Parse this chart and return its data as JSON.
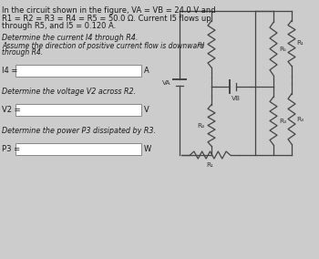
{
  "bg_color": "#cccccc",
  "text_color": "#1a1a1a",
  "title_lines": [
    "In the circuit shown in the figure, VA = VB = 24.0 V and",
    "R1 = R2 = R3 = R4 = R5 = 50.0 Ω. Current I5 flows up",
    "through R5, and I5 = 0.120 A."
  ],
  "q1_head": "Determine the current I4 through R4.",
  "q1_note1": "Assume the direction of positive current flow is downward",
  "q1_note2": "through R4.",
  "q1_label": "I4 =",
  "q1_unit": "A",
  "q2_text": "Determine the voltage V2 across R2.",
  "q2_label": "V2 =",
  "q2_unit": "V",
  "q3_text": "Determine the power P3 dissipated by R3.",
  "q3_label": "P3 =",
  "q3_unit": "W",
  "wire_color": "#444444",
  "label_color": "#333333",
  "box_edge": "#888888",
  "box_face": "#ffffff",
  "circ_bg": "#c8c8c8"
}
